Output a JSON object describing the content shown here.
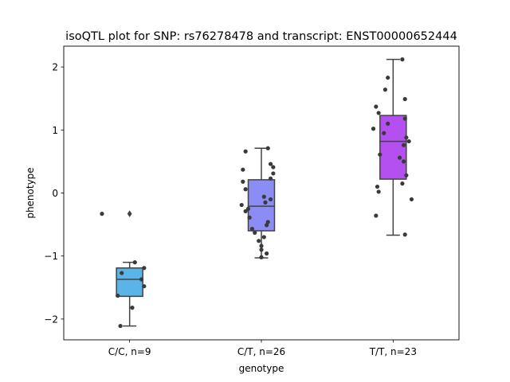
{
  "chart_data": {
    "type": "box",
    "title": "isoQTL plot for SNP: rs76278478 and transcript: ENST00000652444",
    "xlabel": "genotype",
    "ylabel": "phenotype",
    "categories": [
      "C/C, n=9",
      "C/T, n=26",
      "T/T, n=23"
    ],
    "ylim": [
      -2.33,
      2.33
    ],
    "yticks": [
      -2,
      -1,
      0,
      1,
      2
    ],
    "ytick_labels": [
      "−2",
      "−1",
      "0",
      "1",
      "2"
    ],
    "grid": false,
    "boxes": [
      {
        "category": "C/C, n=9",
        "color": "#5ab4e8",
        "whisker_low": -2.11,
        "q1": -1.64,
        "median": -1.37,
        "q3": -1.19,
        "whisker_high": -1.1,
        "outliers": [
          -0.33
        ]
      },
      {
        "category": "C/T, n=26",
        "color": "#8c8cf5",
        "whisker_low": -1.03,
        "q1": -0.6,
        "median": -0.21,
        "q3": 0.21,
        "whisker_high": 0.71,
        "outliers": []
      },
      {
        "category": "T/T, n=23",
        "color": "#b450f0",
        "whisker_low": -0.67,
        "q1": 0.22,
        "median": 0.82,
        "q3": 1.23,
        "whisker_high": 2.12,
        "outliers": []
      }
    ],
    "points": [
      {
        "category": "C/C, n=9",
        "values": [
          -0.33,
          -1.1,
          -1.19,
          -1.27,
          -1.37,
          -1.48,
          -1.63,
          -1.82,
          -2.11
        ],
        "offsets": [
          -0.21,
          0.04,
          0.11,
          -0.06,
          0.09,
          0.11,
          -0.09,
          0.02,
          -0.07
        ]
      },
      {
        "category": "C/T, n=26",
        "values": [
          0.71,
          0.66,
          0.46,
          0.41,
          0.37,
          0.31,
          0.23,
          0.18,
          0.06,
          -0.06,
          -0.1,
          -0.15,
          -0.19,
          -0.25,
          -0.29,
          -0.39,
          -0.46,
          -0.51,
          -0.57,
          -0.63,
          -0.7,
          -0.76,
          -0.84,
          -0.9,
          -0.96,
          -1.02
        ],
        "offsets": [
          0.05,
          -0.12,
          0.07,
          0.09,
          -0.14,
          0.09,
          0.07,
          -0.14,
          -0.12,
          0.02,
          0.07,
          0.03,
          -0.15,
          -0.1,
          -0.12,
          -0.09,
          0.05,
          0.04,
          -0.07,
          -0.05,
          0.02,
          -0.02,
          0.0,
          0.0,
          0.04,
          0.0
        ]
      },
      {
        "category": "T/T, n=23",
        "values": [
          2.12,
          1.83,
          1.64,
          1.49,
          1.37,
          1.27,
          1.18,
          1.1,
          1.02,
          0.95,
          0.88,
          0.82,
          0.76,
          0.61,
          0.56,
          0.5,
          0.28,
          0.15,
          0.1,
          0.02,
          -0.1,
          -0.36,
          -0.66
        ],
        "offsets": [
          0.07,
          -0.04,
          -0.06,
          0.09,
          -0.13,
          -0.11,
          0.09,
          -0.04,
          -0.15,
          -0.07,
          0.1,
          0.12,
          0.08,
          -0.1,
          0.05,
          0.08,
          0.1,
          0.07,
          -0.12,
          -0.11,
          0.14,
          -0.13,
          0.09
        ]
      }
    ]
  }
}
